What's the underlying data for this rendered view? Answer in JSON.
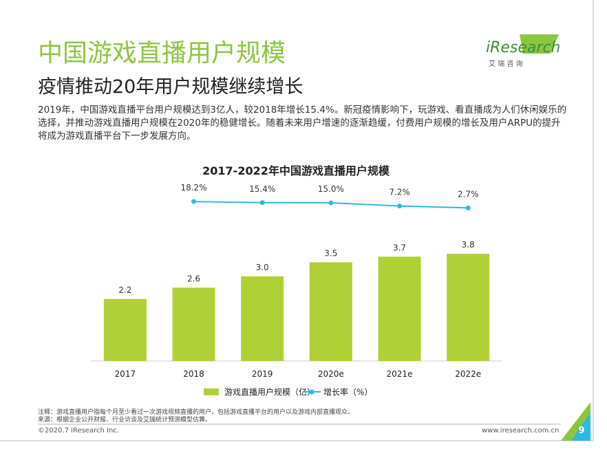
{
  "page": {
    "title": "中国游戏直播用户规模",
    "subtitle": "疫情推动20年用户规模继续增长",
    "logo": "iResearch",
    "logo_cn": "艾 瑞 咨 询",
    "paragraph": "2019年，中国游戏直播平台用户规模达到3亿人，较2018年增长15.4%。新冠疫情影响下，玩游戏、看直播成为人们休闲娱乐的选择，并推动游戏直播用户规模在2020年的稳健增长。随着未来用户增速的逐渐趋缓，付费用户规模的增长及用户ARPU的提升将成为游戏直播平台下一步发展方向。",
    "note": "注释：游戏直播用户指每个月至少看过一次游戏视频直播的用户，包括游戏直播平台的用户以及游戏内部直播观众。",
    "source": "来源：根据企业公开财报、行业访谈及艾瑞统计预测模型估算。",
    "copyright": "©2020.7 iResearch Inc.",
    "url": "www.iresearch.com.cn",
    "page_number": "9"
  },
  "chart_data": {
    "type": "bar",
    "title": "2017-2022年中国游戏直播用户规模",
    "categories": [
      "2017",
      "2018",
      "2019",
      "2020e",
      "2021e",
      "2022e"
    ],
    "ylim": [
      0,
      5
    ],
    "y2lim": [
      0,
      20
    ],
    "series": [
      {
        "name": "游戏直播用户规模（亿）",
        "type": "bar",
        "color": "#b0d135",
        "values": [
          2.2,
          2.6,
          3.0,
          3.5,
          3.7,
          3.8
        ],
        "value_labels": [
          "2.2",
          "2.6",
          "3.0",
          "3.5",
          "3.7",
          "3.8"
        ]
      },
      {
        "name": "增长率（%）",
        "type": "line",
        "axis": "y2",
        "color": "#29b8ea",
        "values": [
          null,
          18.2,
          15.4,
          15.0,
          7.2,
          2.7
        ],
        "value_labels": [
          null,
          "18.2%",
          "15.4%",
          "15.0%",
          "7.2%",
          "2.7%"
        ]
      }
    ]
  }
}
